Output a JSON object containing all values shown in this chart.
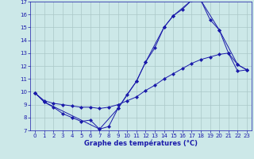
{
  "xlabel": "Graphe des températures (°C)",
  "background_color": "#cce8e8",
  "grid_color": "#aac8c8",
  "line_color": "#1a1aaa",
  "xlim": [
    -0.5,
    23.5
  ],
  "ylim": [
    7,
    17
  ],
  "yticks": [
    7,
    8,
    9,
    10,
    11,
    12,
    13,
    14,
    15,
    16,
    17
  ],
  "xticks": [
    0,
    1,
    2,
    3,
    4,
    5,
    6,
    7,
    8,
    9,
    10,
    11,
    12,
    13,
    14,
    15,
    16,
    17,
    18,
    19,
    20,
    21,
    22,
    23
  ],
  "line1_x": [
    0,
    1,
    2,
    3,
    4,
    5,
    6,
    7,
    8,
    9,
    10,
    11,
    12,
    13,
    14,
    15,
    16,
    17,
    18,
    19,
    20,
    21,
    22,
    23
  ],
  "line1_y": [
    9.9,
    9.2,
    8.8,
    8.3,
    8.0,
    7.7,
    7.8,
    7.1,
    7.3,
    8.7,
    9.8,
    10.8,
    12.3,
    13.4,
    15.0,
    15.9,
    16.4,
    17.1,
    17.1,
    15.6,
    14.8,
    13.0,
    12.1,
    11.7
  ],
  "line2_x": [
    0,
    1,
    2,
    3,
    4,
    5,
    6,
    7,
    8,
    9,
    10,
    11,
    12,
    13,
    14,
    15,
    16,
    17,
    18,
    19,
    20,
    21,
    22,
    23
  ],
  "line2_y": [
    9.9,
    9.3,
    9.1,
    9.0,
    8.9,
    8.8,
    8.8,
    8.7,
    8.8,
    9.0,
    9.3,
    9.6,
    10.1,
    10.5,
    11.0,
    11.4,
    11.8,
    12.2,
    12.5,
    12.7,
    12.9,
    13.0,
    11.6,
    11.7
  ],
  "line3_x": [
    0,
    1,
    7,
    9,
    11,
    12,
    14,
    15,
    17,
    18,
    20,
    22,
    23
  ],
  "line3_y": [
    9.9,
    9.2,
    7.1,
    8.7,
    10.8,
    12.3,
    15.0,
    15.9,
    17.1,
    17.1,
    14.8,
    12.1,
    11.7
  ]
}
